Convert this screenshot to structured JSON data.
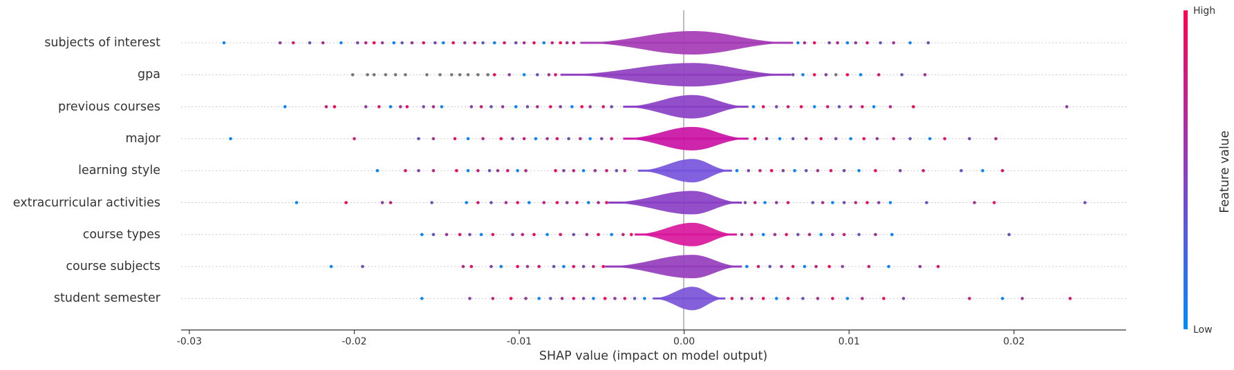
{
  "chart_data": {
    "type": "violin-summary",
    "title": "",
    "xlabel": "SHAP value (impact on model output)",
    "xlim": [
      -0.0305,
      0.0268
    ],
    "xticks": [
      "-0.03",
      "-0.02",
      "-0.01",
      "0.00",
      "0.01",
      "0.02"
    ],
    "xtick_values": [
      -0.03,
      -0.02,
      -0.01,
      0.0,
      0.01,
      0.02
    ],
    "colorbar": {
      "title": "Feature value",
      "high_label": "High",
      "low_label": "Low",
      "low_color": "#008bfb",
      "high_color": "#ff0052"
    },
    "features": [
      {
        "name": "subjects of interest",
        "min": -0.0279,
        "max": 0.0148,
        "core": [
          -0.0063,
          0.0066
        ],
        "color": "#a53bb5",
        "points": [
          -0.0279,
          -0.0245,
          -0.0237,
          -0.0227,
          -0.0219,
          -0.0208,
          -0.0198,
          -0.0193,
          -0.0188,
          -0.0183,
          -0.0176,
          -0.0171,
          -0.0165,
          -0.0158,
          -0.0151,
          -0.0146,
          -0.014,
          -0.0133,
          -0.0127,
          -0.0122,
          -0.0115,
          -0.0109,
          -0.0102,
          -0.0097,
          -0.0091,
          -0.0085,
          -0.008,
          -0.0075,
          -0.0071,
          -0.0067,
          0.0069,
          0.0073,
          0.0079,
          0.0088,
          0.0093,
          0.0099,
          0.0104,
          0.0111,
          0.0119,
          0.0127,
          0.0137,
          0.0148
        ]
      },
      {
        "name": "gpa",
        "min": -0.0201,
        "max": 0.0146,
        "core": [
          -0.0075,
          0.0065
        ],
        "color": "#8f3fc0",
        "points": [
          -0.0201,
          -0.0192,
          -0.0188,
          -0.0181,
          -0.0175,
          -0.0169,
          -0.0156,
          -0.0148,
          -0.0141,
          -0.0136,
          -0.0131,
          -0.0125,
          -0.0119,
          -0.0115,
          -0.0106,
          -0.0097,
          -0.0089,
          -0.0082,
          -0.0078,
          0.0066,
          0.0072,
          0.0079,
          0.0086,
          0.0092,
          0.0099,
          0.0107,
          0.0118,
          0.0132,
          0.0146
        ],
        "grey": [
          -0.0201,
          -0.0192,
          -0.0188,
          -0.0181,
          -0.0175,
          -0.0169,
          -0.0156,
          -0.0148,
          -0.0141,
          -0.0136,
          -0.0131,
          -0.0125,
          -0.0119,
          -0.0088,
          -0.0074,
          0.0087,
          0.0092
        ]
      },
      {
        "name": "previous courses",
        "min": -0.0242,
        "max": 0.0232,
        "core": [
          -0.0037,
          0.0039
        ],
        "color": "#8a40c4",
        "points": [
          -0.0242,
          -0.0217,
          -0.0212,
          -0.0193,
          -0.0185,
          -0.0178,
          -0.0172,
          -0.0168,
          -0.0158,
          -0.0152,
          -0.0147,
          -0.0129,
          -0.0123,
          -0.0117,
          -0.011,
          -0.0102,
          -0.0095,
          -0.0089,
          -0.0081,
          -0.0075,
          -0.0068,
          -0.0062,
          -0.0057,
          -0.0049,
          -0.0044,
          0.0042,
          0.0048,
          0.0056,
          0.0063,
          0.0071,
          0.0079,
          0.0087,
          0.0094,
          0.0101,
          0.0108,
          0.0115,
          0.0125,
          0.0139,
          0.0232
        ]
      },
      {
        "name": "major",
        "min": -0.0275,
        "max": 0.0189,
        "core": [
          -0.0037,
          0.0039
        ],
        "color": "#c914a6",
        "points": [
          -0.0275,
          -0.02,
          -0.0161,
          -0.0152,
          -0.0139,
          -0.0131,
          -0.0122,
          -0.0111,
          -0.0104,
          -0.0097,
          -0.009,
          -0.0083,
          -0.0077,
          -0.007,
          -0.0063,
          -0.0057,
          -0.005,
          -0.0044,
          0.0043,
          0.005,
          0.0058,
          0.0066,
          0.0074,
          0.0083,
          0.0092,
          0.0101,
          0.0109,
          0.0117,
          0.0127,
          0.0137,
          0.0149,
          0.0158,
          0.0173,
          0.0189
        ]
      },
      {
        "name": "learning style",
        "min": -0.0186,
        "max": 0.0193,
        "core": [
          -0.0028,
          0.0029
        ],
        "color": "#7755db",
        "points": [
          -0.0186,
          -0.0169,
          -0.0161,
          -0.0152,
          -0.0138,
          -0.0131,
          -0.0125,
          -0.0118,
          -0.0113,
          -0.0107,
          -0.0101,
          -0.0096,
          -0.0078,
          -0.0073,
          -0.0067,
          -0.0061,
          -0.0054,
          -0.0047,
          -0.0041,
          -0.0036,
          0.0032,
          0.0039,
          0.0046,
          0.0053,
          0.006,
          0.0067,
          0.0074,
          0.0081,
          0.0089,
          0.0097,
          0.0106,
          0.0116,
          0.0131,
          0.0145,
          0.0168,
          0.0181,
          0.0193
        ]
      },
      {
        "name": "extracurricular activities",
        "min": -0.0235,
        "max": 0.0243,
        "core": [
          -0.0046,
          0.0035
        ],
        "color": "#8a40c4",
        "points": [
          -0.0235,
          -0.0205,
          -0.0183,
          -0.0178,
          -0.0153,
          -0.0132,
          -0.0125,
          -0.0117,
          -0.0108,
          -0.0101,
          -0.0094,
          -0.0085,
          -0.0077,
          -0.0071,
          -0.0065,
          -0.0058,
          -0.0052,
          -0.0047,
          0.0037,
          0.0043,
          0.0049,
          0.0056,
          0.0063,
          0.0078,
          0.0084,
          0.009,
          0.0097,
          0.0104,
          0.0111,
          0.0118,
          0.0125,
          0.0147,
          0.0176,
          0.0188,
          0.0243
        ]
      },
      {
        "name": "course types",
        "min": -0.0159,
        "max": 0.0197,
        "core": [
          -0.003,
          0.0032
        ],
        "color": "#d8189c",
        "points": [
          -0.0159,
          -0.0152,
          -0.0144,
          -0.0136,
          -0.013,
          -0.0123,
          -0.0116,
          -0.0104,
          -0.0098,
          -0.0091,
          -0.0083,
          -0.0075,
          -0.0067,
          -0.0059,
          -0.0052,
          -0.0044,
          -0.0037,
          -0.0032,
          0.0035,
          0.0041,
          0.0048,
          0.0055,
          0.0062,
          0.0069,
          0.0076,
          0.0083,
          0.009,
          0.0097,
          0.0106,
          0.0116,
          0.0126,
          0.0197
        ]
      },
      {
        "name": "course subjects",
        "min": -0.0214,
        "max": 0.0154,
        "core": [
          -0.0048,
          0.0035
        ],
        "color": "#953ebc",
        "points": [
          -0.0214,
          -0.0195,
          -0.0134,
          -0.0129,
          -0.0117,
          -0.0111,
          -0.0101,
          -0.0095,
          -0.0088,
          -0.0079,
          -0.0073,
          -0.0067,
          -0.0061,
          -0.0055,
          -0.0049,
          0.0038,
          0.0045,
          0.0052,
          0.0059,
          0.0066,
          0.0073,
          0.008,
          0.0088,
          0.0096,
          0.0112,
          0.0124,
          0.0143,
          0.0154
        ]
      },
      {
        "name": "student semester",
        "min": -0.0159,
        "max": 0.0234,
        "core": [
          -0.0019,
          0.0025
        ],
        "color": "#7a52d8",
        "points": [
          -0.0159,
          -0.013,
          -0.0116,
          -0.0105,
          -0.0096,
          -0.0088,
          -0.0081,
          -0.0074,
          -0.0067,
          -0.0061,
          -0.0055,
          -0.0048,
          -0.0042,
          -0.0036,
          -0.003,
          -0.0024,
          0.0029,
          0.0035,
          0.0041,
          0.0048,
          0.0056,
          0.0063,
          0.0072,
          0.0081,
          0.009,
          0.0099,
          0.0108,
          0.0121,
          0.0133,
          0.0173,
          0.0193,
          0.0205,
          0.0234
        ]
      }
    ]
  }
}
